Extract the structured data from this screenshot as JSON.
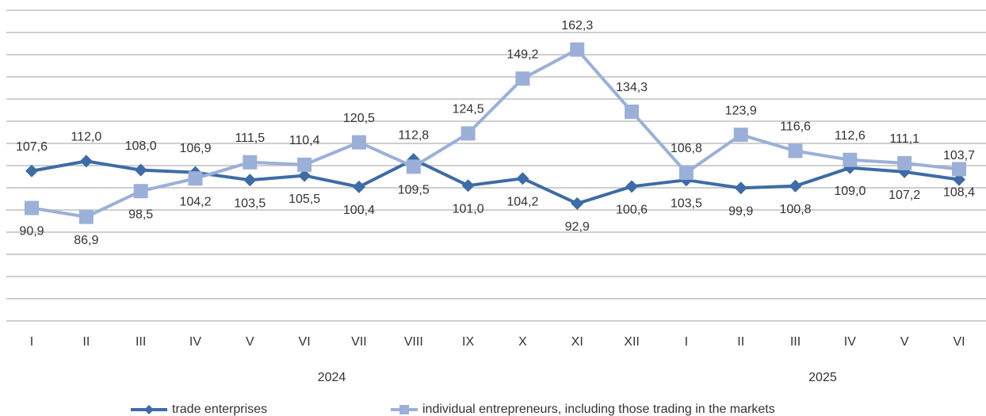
{
  "chart_data": {
    "type": "line",
    "categories": [
      "I",
      "II",
      "III",
      "IV",
      "V",
      "VI",
      "VII",
      "VIII",
      "IX",
      "X",
      "XI",
      "XII",
      "I",
      "II",
      "III",
      "IV",
      "V",
      "VI"
    ],
    "groups": [
      "2024",
      "2025"
    ],
    "series": [
      {
        "name": "trade enterprises",
        "color": "#3d6ca6",
        "marker": "diamond",
        "values": [
          107.6,
          112.0,
          108.0,
          106.9,
          103.5,
          105.5,
          100.4,
          112.8,
          101.0,
          104.2,
          92.9,
          100.6,
          103.5,
          99.9,
          100.8,
          109.0,
          107.2,
          103.7
        ],
        "value_labels": [
          "107,6",
          "112,0",
          "108,0",
          "106,9",
          "103,5",
          "105,5",
          "100,4",
          "112,8",
          "101,0",
          "104,2",
          "92,9",
          "100,6",
          "103,5",
          "99,9",
          "100,8",
          "109,0",
          "107,2",
          "103,7"
        ]
      },
      {
        "name": "individual entrepreneurs, including those trading in the markets",
        "color": "#9bb0d8",
        "marker": "square",
        "values": [
          90.9,
          86.9,
          98.5,
          104.2,
          111.5,
          110.4,
          120.5,
          109.5,
          124.5,
          149.2,
          162.3,
          134.3,
          106.8,
          123.9,
          116.6,
          112.6,
          111.1,
          108.4
        ],
        "value_labels": [
          "90,9",
          "86,9",
          "98,5",
          "104,2",
          "111,5",
          "110,4",
          "120,5",
          "109,5",
          "124,5",
          "149,2",
          "162,3",
          "134,3",
          "106,8",
          "123,9",
          "116,6",
          "112,6",
          "111,1",
          "108,4"
        ]
      }
    ],
    "ylim": [
      40,
      180
    ],
    "yticks": [
      40,
      50,
      60,
      70,
      80,
      90,
      100,
      110,
      120,
      130,
      140,
      150,
      160,
      170,
      180
    ],
    "grid": true
  }
}
